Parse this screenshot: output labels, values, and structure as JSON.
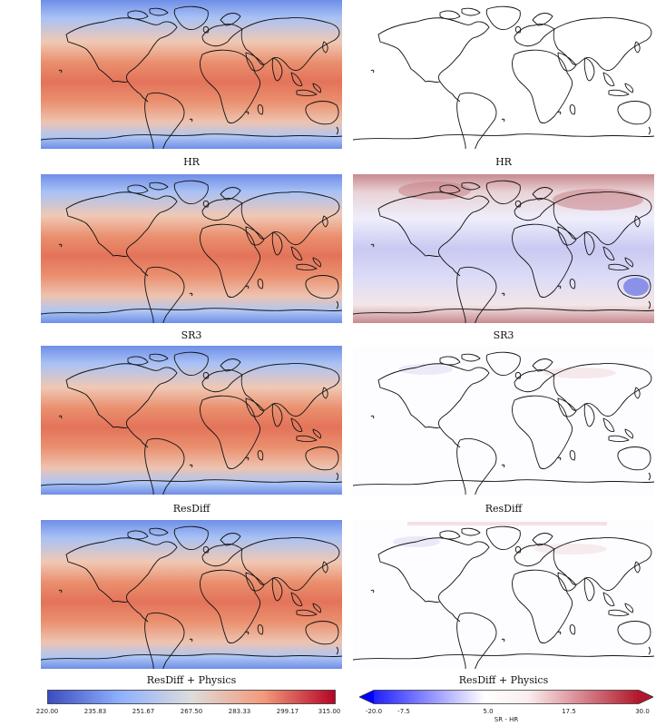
{
  "left_column": {
    "captions": [
      "HR",
      "SR3",
      "ResDiff",
      "ResDiff + Physics"
    ]
  },
  "right_column": {
    "captions": [
      "HR",
      "SR3",
      "ResDiff",
      "ResDiff + Physics"
    ]
  },
  "colorbar_left": {
    "ticks": [
      "220.00",
      "235.83",
      "251.67",
      "267.50",
      "283.33",
      "299.17",
      "315.00"
    ],
    "colors": [
      "#3b4cc0",
      "#8db0fe",
      "#dddcdc",
      "#f49a7b",
      "#b40426"
    ]
  },
  "colorbar_right": {
    "ticks": [
      "-20.0",
      "-7.5",
      "5.0",
      "17.5",
      "30.0"
    ],
    "label": "SR - HR",
    "colors": [
      "#0000ff",
      "#ffffff",
      "#b2182b"
    ]
  }
}
